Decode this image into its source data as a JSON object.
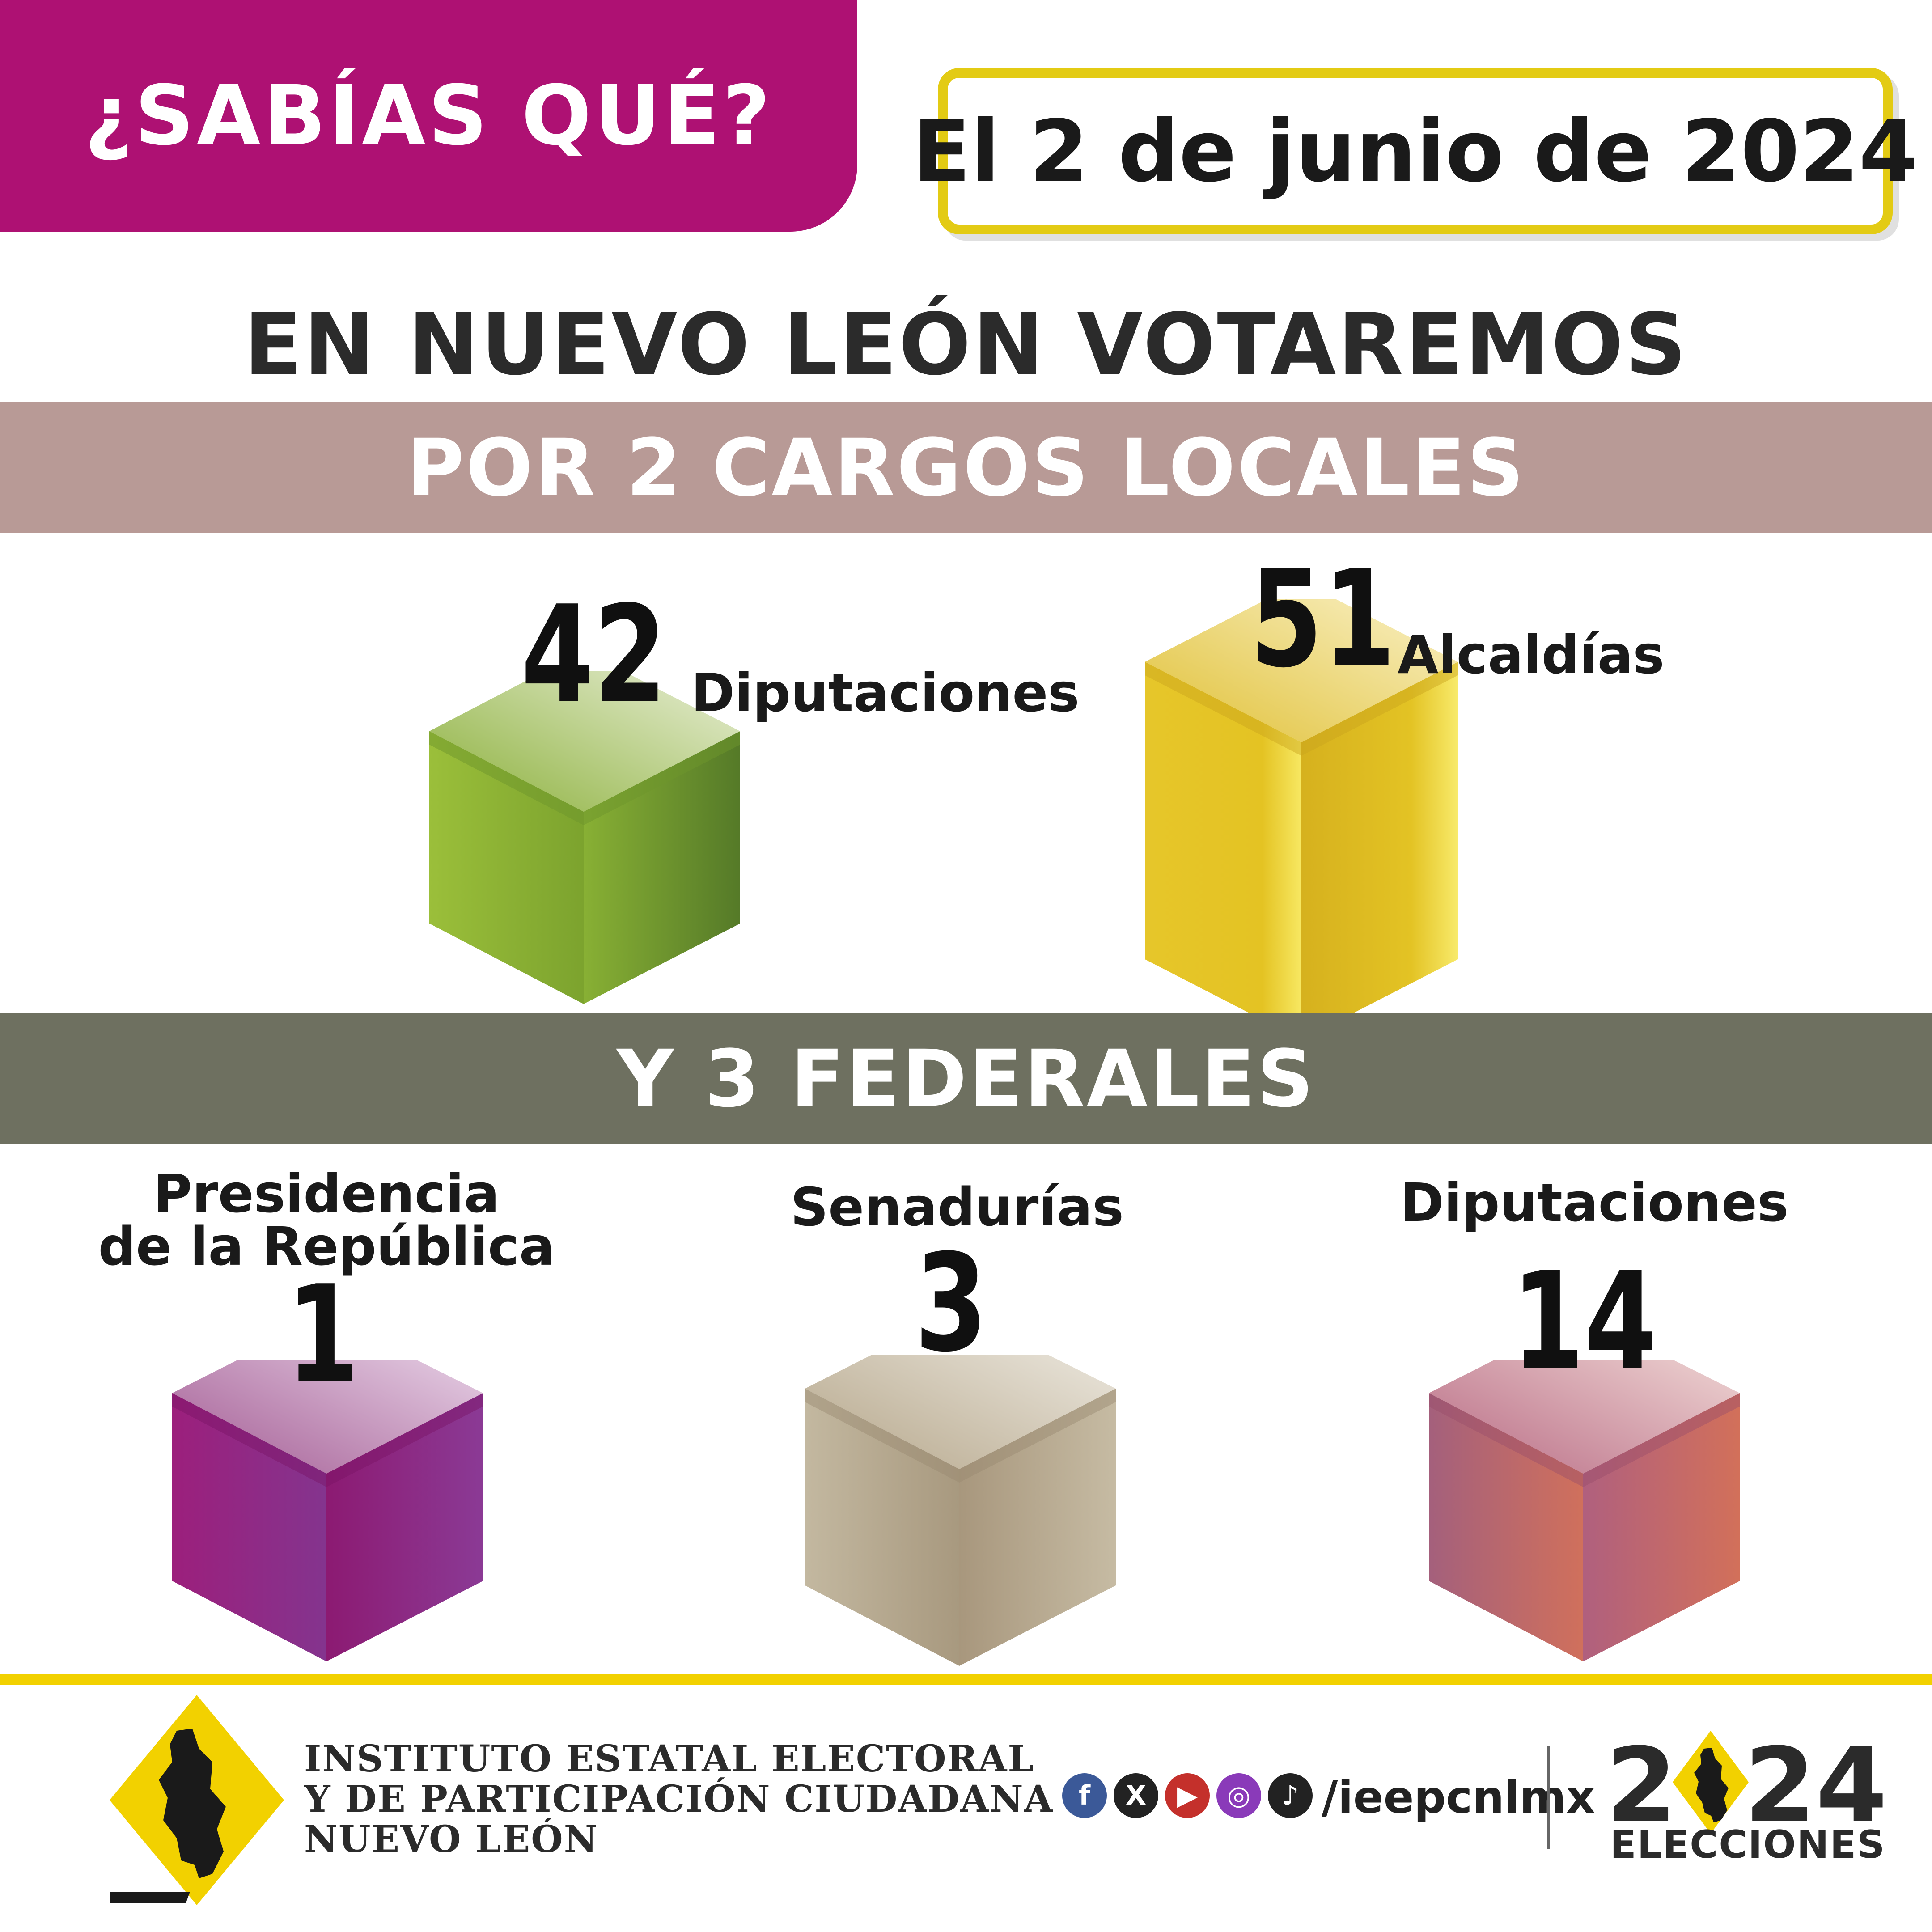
{
  "header": {
    "tag": "¿SABÍAS QUÉ?",
    "date": "El 2 de junio de 2024"
  },
  "headline": "EN NUEVO LEÓN VOTAREMOS",
  "local": {
    "band_label": "POR 2 CARGOS LOCALES",
    "items": [
      {
        "number": "42",
        "label": "Diputaciones",
        "color": "#7fa82e"
      },
      {
        "number": "51",
        "label": "Alcaldías",
        "color": "#e8c520"
      }
    ]
  },
  "federal": {
    "band_label": "Y 3 FEDERALES",
    "items": [
      {
        "label_line1": "Presidencia",
        "label_line2": "de la República",
        "number": "1",
        "color": "#96207e"
      },
      {
        "label_line1": "Senadurías",
        "label_line2": "",
        "number": "3",
        "color": "#bfb39b"
      },
      {
        "label_line1": "Diputaciones",
        "label_line2": "",
        "number": "14",
        "color": "#c9646a"
      }
    ]
  },
  "footer": {
    "institute_line1": "INSTITUTO ESTATAL ELECTORAL",
    "institute_line2": "Y DE PARTICIPACIÓN CIUDADANA",
    "institute_line3": "NUEVO LEÓN",
    "social_icons": [
      "facebook-icon",
      "x-icon",
      "youtube-icon",
      "instagram-icon",
      "tiktok-icon"
    ],
    "handle": "/ieepcnlmx",
    "year_digit1": "2",
    "year_digits": "24",
    "elections_label": "ELECCIONES",
    "accent": "#f2d100"
  }
}
